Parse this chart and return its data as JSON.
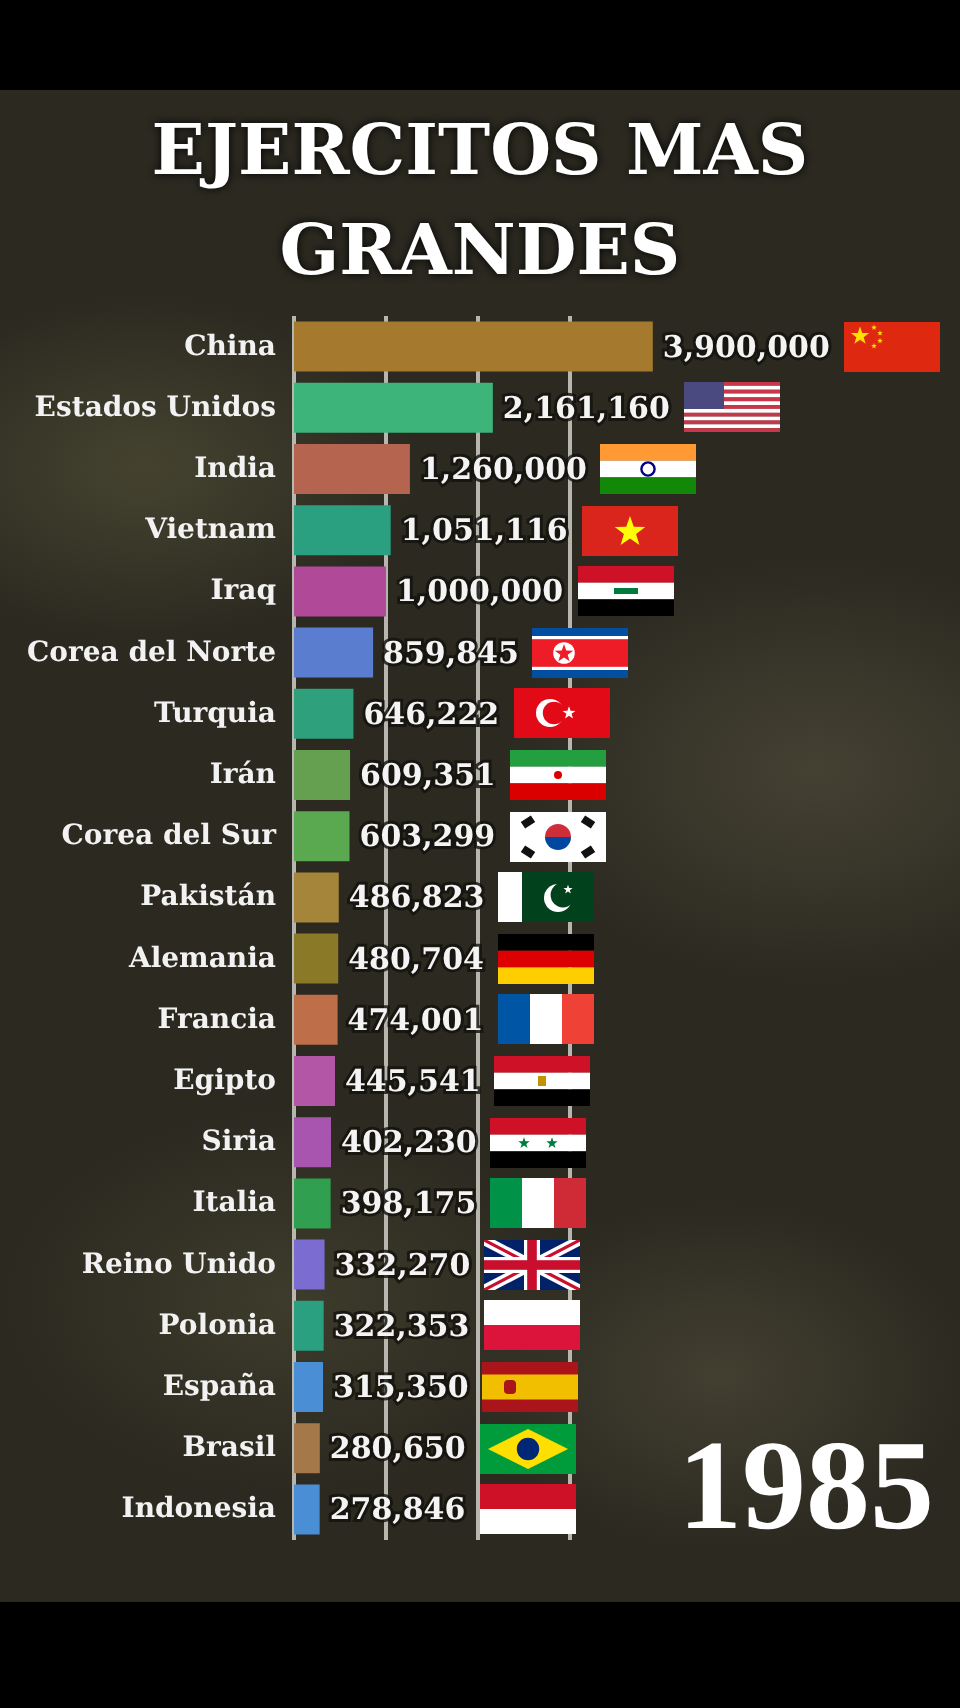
{
  "chart_data": {
    "type": "bar",
    "orientation": "horizontal",
    "title": "EJERCITOS MAS GRANDES",
    "categories": [
      "China",
      "Estados Unidos",
      "India",
      "Vietnam",
      "Iraq",
      "Corea del Norte",
      "Turquia",
      "Irán",
      "Corea del Sur",
      "Pakistán",
      "Alemania",
      "Francia",
      "Egipto",
      "Siria",
      "Italia",
      "Reino Unido",
      "Polonia",
      "España",
      "Brasil",
      "Indonesia"
    ],
    "values": [
      3900000,
      2161160,
      1260000,
      1051116,
      1000000,
      859845,
      646222,
      609351,
      603299,
      486823,
      480704,
      474001,
      445541,
      402230,
      398175,
      332270,
      322353,
      315350,
      280650,
      278846
    ],
    "value_labels": [
      "3,900,000",
      "2,161,160",
      "1,260,000",
      "1,051,116",
      "1,000,000",
      "859,845",
      "646,222",
      "609,351",
      "603,299",
      "486,823",
      "480,704",
      "474,001",
      "445,541",
      "402,230",
      "398,175",
      "332,270",
      "322,353",
      "315,350",
      "280,650",
      "278,846"
    ],
    "colors": [
      "#a57a2e",
      "#3db47a",
      "#b5654f",
      "#2aa080",
      "#b04a98",
      "#5a7dd0",
      "#2ea07c",
      "#64a050",
      "#5aa850",
      "#a5853a",
      "#8a7a28",
      "#be6e48",
      "#b456a6",
      "#a855b0",
      "#30a050",
      "#7a6cd0",
      "#2aa080",
      "#4a8ed6",
      "#a5784a",
      "#4a8ed6"
    ],
    "tick_labels": "y",
    "grid": "x",
    "annotations": [
      "1985"
    ]
  }
}
